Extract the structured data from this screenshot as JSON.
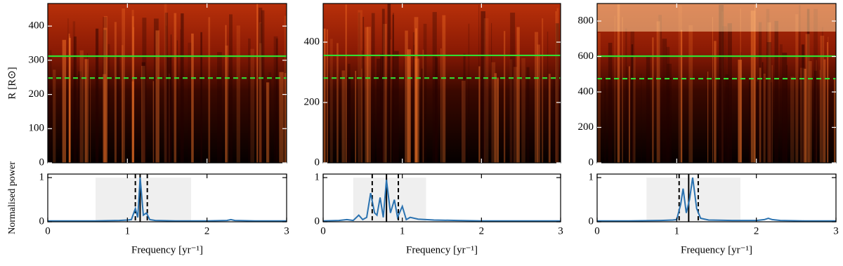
{
  "chart_data": [
    {
      "type": "heatmap",
      "ylabel": "R [R⊙]",
      "xlim": [
        0,
        3
      ],
      "xticks": [
        1,
        2
      ],
      "ylim": [
        0,
        466
      ],
      "yticks": [
        0,
        100,
        200,
        300,
        400
      ],
      "hlines": [
        {
          "value": 312,
          "style": "solid"
        },
        {
          "value": 248,
          "style": "dashed"
        }
      ],
      "line_color": "#33dd33"
    },
    {
      "type": "heatmap",
      "xlim": [
        0,
        3
      ],
      "xticks": [
        1,
        2
      ],
      "ylim": [
        0,
        528
      ],
      "yticks": [
        0,
        200,
        400
      ],
      "hlines": [
        {
          "value": 356,
          "style": "solid"
        },
        {
          "value": 281,
          "style": "dashed"
        }
      ],
      "line_color": "#33dd33"
    },
    {
      "type": "heatmap",
      "xlim": [
        0,
        3
      ],
      "xticks": [
        1,
        2
      ],
      "ylim": [
        0,
        899
      ],
      "yticks": [
        0,
        200,
        400,
        600,
        800
      ],
      "hlines": [
        {
          "value": 602,
          "style": "solid"
        },
        {
          "value": 475,
          "style": "dashed"
        }
      ],
      "line_color": "#33dd33"
    },
    {
      "type": "line",
      "ylabel": "Normalised power",
      "xlabel": "Frequency [yr⁻¹]",
      "xlim": [
        0,
        3
      ],
      "xticks": [
        0,
        1,
        2,
        3
      ],
      "ylim": [
        0,
        1.08
      ],
      "yticks": [
        0,
        1
      ],
      "span": [
        0.6,
        1.8
      ],
      "vlines": [
        {
          "value": 1.1,
          "style": "dashed"
        },
        {
          "value": 1.16,
          "style": "solid"
        },
        {
          "value": 1.25,
          "style": "dashed"
        }
      ],
      "color": "#2a72b0",
      "x": [
        0,
        0.3,
        0.6,
        0.9,
        1.0,
        1.05,
        1.1,
        1.13,
        1.16,
        1.2,
        1.24,
        1.28,
        1.35,
        1.6,
        2.0,
        2.25,
        2.3,
        2.35,
        2.6,
        3.0
      ],
      "values": [
        0.02,
        0.02,
        0.02,
        0.03,
        0.04,
        0.05,
        0.3,
        0.1,
        1.0,
        0.15,
        0.2,
        0.05,
        0.03,
        0.02,
        0.02,
        0.03,
        0.05,
        0.03,
        0.02,
        0.02
      ]
    },
    {
      "type": "line",
      "xlabel": "Frequency [yr⁻¹]",
      "xlim": [
        0,
        3
      ],
      "xticks": [
        0,
        1,
        2,
        3
      ],
      "ylim": [
        0,
        1.08
      ],
      "yticks": [
        0,
        1
      ],
      "span": [
        0.38,
        1.3
      ],
      "vlines": [
        {
          "value": 0.62,
          "style": "dashed"
        },
        {
          "value": 0.8,
          "style": "solid"
        },
        {
          "value": 0.95,
          "style": "dashed"
        }
      ],
      "color": "#2a72b0",
      "x": [
        0,
        0.2,
        0.3,
        0.38,
        0.45,
        0.5,
        0.55,
        0.6,
        0.65,
        0.68,
        0.72,
        0.76,
        0.8,
        0.85,
        0.9,
        0.94,
        1.0,
        1.05,
        1.1,
        1.2,
        1.4,
        1.7,
        2.0,
        2.5,
        3.0
      ],
      "values": [
        0.02,
        0.03,
        0.05,
        0.03,
        0.15,
        0.05,
        0.1,
        0.65,
        0.2,
        0.15,
        0.55,
        0.1,
        0.95,
        0.2,
        0.5,
        0.1,
        0.35,
        0.05,
        0.1,
        0.06,
        0.04,
        0.03,
        0.02,
        0.02,
        0.02
      ]
    },
    {
      "type": "line",
      "xlabel": "Frequency [yr⁻¹]",
      "xlim": [
        0,
        3
      ],
      "xticks": [
        0,
        1,
        2,
        3
      ],
      "ylim": [
        0,
        1.08
      ],
      "yticks": [
        0,
        1
      ],
      "span": [
        0.62,
        1.8
      ],
      "vlines": [
        {
          "value": 1.03,
          "style": "dashed"
        },
        {
          "value": 1.15,
          "style": "solid"
        },
        {
          "value": 1.27,
          "style": "dashed"
        }
      ],
      "color": "#2a72b0",
      "x": [
        0,
        0.4,
        0.8,
        0.95,
        1.0,
        1.05,
        1.08,
        1.12,
        1.16,
        1.2,
        1.25,
        1.3,
        1.4,
        1.7,
        2.0,
        2.1,
        2.15,
        2.2,
        2.3,
        2.6,
        3.0
      ],
      "values": [
        0.02,
        0.02,
        0.03,
        0.04,
        0.05,
        0.4,
        0.75,
        0.2,
        0.5,
        1.0,
        0.3,
        0.08,
        0.04,
        0.03,
        0.03,
        0.05,
        0.08,
        0.05,
        0.03,
        0.02,
        0.02
      ]
    }
  ]
}
